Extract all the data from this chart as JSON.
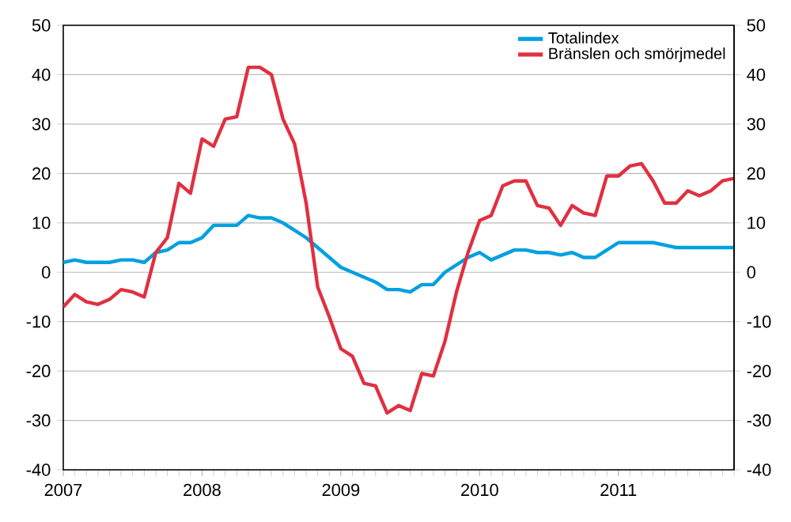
{
  "chart_data": {
    "type": "line",
    "x": [
      "2007-01",
      "2007-02",
      "2007-03",
      "2007-04",
      "2007-05",
      "2007-06",
      "2007-07",
      "2007-08",
      "2007-09",
      "2007-10",
      "2007-11",
      "2007-12",
      "2008-01",
      "2008-02",
      "2008-03",
      "2008-04",
      "2008-05",
      "2008-06",
      "2008-07",
      "2008-08",
      "2008-09",
      "2008-10",
      "2008-11",
      "2008-12",
      "2009-01",
      "2009-02",
      "2009-03",
      "2009-04",
      "2009-05",
      "2009-06",
      "2009-07",
      "2009-08",
      "2009-09",
      "2009-10",
      "2009-11",
      "2009-12",
      "2010-01",
      "2010-02",
      "2010-03",
      "2010-04",
      "2010-05",
      "2010-06",
      "2010-07",
      "2010-08",
      "2010-09",
      "2010-10",
      "2010-11",
      "2010-12",
      "2011-01",
      "2011-02",
      "2011-03",
      "2011-04",
      "2011-05",
      "2011-06",
      "2011-07",
      "2011-08",
      "2011-09",
      "2011-10",
      "2011-11"
    ],
    "series": [
      {
        "name": "Totalindex",
        "color": "#00a0e0",
        "values": [
          2,
          2.5,
          2,
          2,
          2,
          2.5,
          2.5,
          2,
          4,
          4.5,
          6,
          6,
          7,
          9.5,
          9.5,
          9.5,
          11.5,
          11,
          11,
          10,
          8.5,
          7,
          5,
          3,
          1,
          0,
          -1,
          -2,
          -3.5,
          -3.5,
          -4,
          -2.5,
          -2.5,
          0,
          1.5,
          3,
          4,
          2.5,
          3.5,
          4.5,
          4.5,
          4,
          4,
          3.5,
          4,
          3,
          3,
          4.5,
          6,
          6,
          6,
          6,
          5.5,
          5,
          5,
          5,
          5,
          5,
          5
        ]
      },
      {
        "name": "Bränslen och smörjmedel",
        "color": "#e03040",
        "values": [
          -7,
          -4.5,
          -6,
          -6.5,
          -5.5,
          -3.5,
          -4,
          -5,
          4,
          7,
          18,
          16,
          27,
          25.5,
          31,
          31.5,
          41.5,
          41.5,
          40,
          31,
          26,
          14,
          -3,
          -9,
          -15.5,
          -17,
          -22.5,
          -23,
          -28.5,
          -27,
          -28,
          -20.5,
          -21,
          -14,
          -4,
          4,
          10.5,
          11.5,
          17.5,
          18.5,
          18.5,
          13.5,
          13,
          9.5,
          13.5,
          12,
          11.5,
          19.5,
          19.5,
          21.5,
          22,
          18.5,
          14,
          14,
          16.5,
          15.5,
          16.5,
          18.5,
          19
        ]
      }
    ],
    "xlim": [
      "2007-01",
      "2011-11"
    ],
    "xticks": [
      {
        "value": "2007-01",
        "label": "2007"
      },
      {
        "value": "2008-01",
        "label": "2008"
      },
      {
        "value": "2009-01",
        "label": "2009"
      },
      {
        "value": "2010-01",
        "label": "2010"
      },
      {
        "value": "2011-01",
        "label": "2011"
      }
    ],
    "ylim": [
      -40,
      50
    ],
    "yticks": [
      -40,
      -30,
      -20,
      -10,
      0,
      10,
      20,
      30,
      40,
      50
    ],
    "y2lim": [
      -40,
      50
    ],
    "y2ticks": [
      -40,
      -30,
      -20,
      -10,
      0,
      10,
      20,
      30,
      40,
      50
    ],
    "grid": "y",
    "legend": "top right",
    "marker": "none",
    "line_style": "solid"
  }
}
